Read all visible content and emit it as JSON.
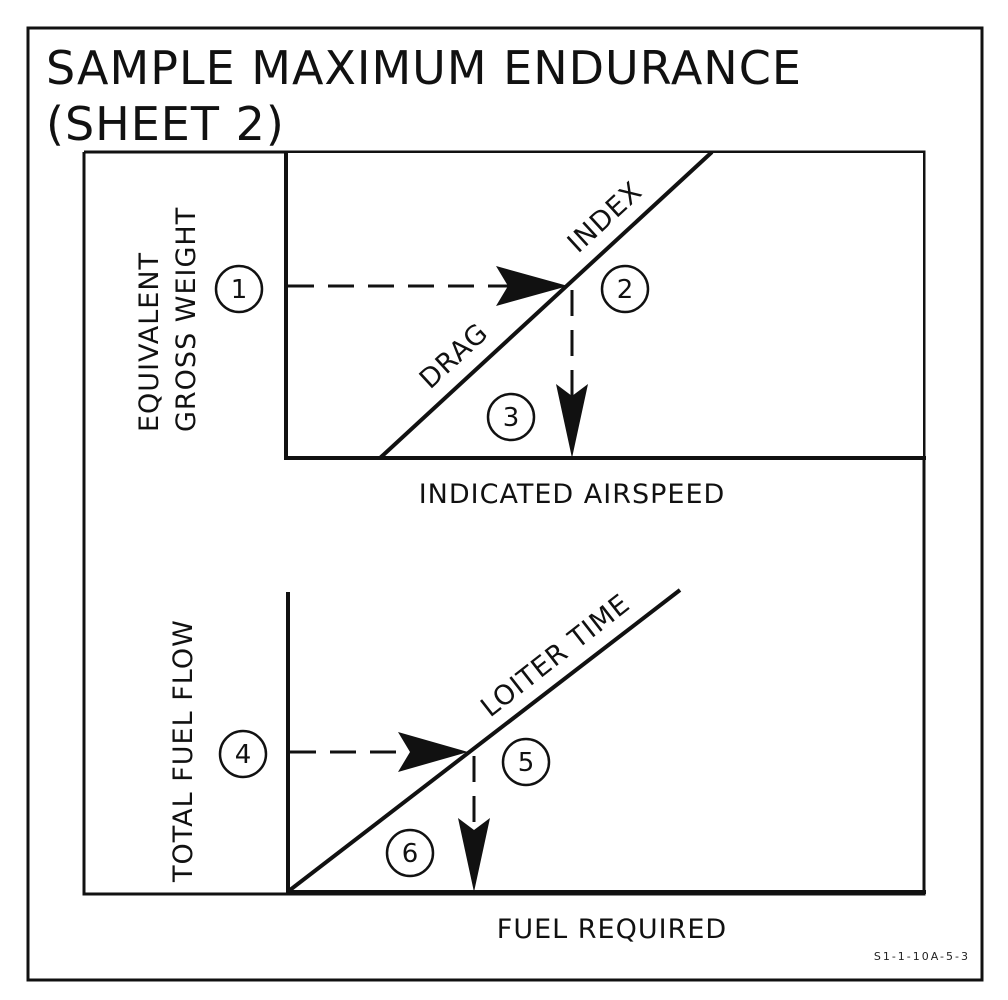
{
  "title": {
    "line1": "SAMPLE MAXIMUM ENDURANCE",
    "line2": "(SHEET 2)"
  },
  "upper_chart": {
    "y_axis_label_line1": "EQUIVALENT",
    "y_axis_label_line2": "GROSS WEIGHT",
    "x_axis_label": "INDICATED AIRSPEED",
    "reference_line_label_part1": "DRAG",
    "reference_line_label_part2": "INDEX",
    "steps": [
      "1",
      "2",
      "3"
    ]
  },
  "lower_chart": {
    "y_axis_label": "TOTAL FUEL FLOW",
    "x_axis_label": "FUEL REQUIRED",
    "reference_line_label": "LOITER TIME",
    "steps": [
      "4",
      "5",
      "6"
    ]
  },
  "figure_code": "S1-1-10A-5-3"
}
